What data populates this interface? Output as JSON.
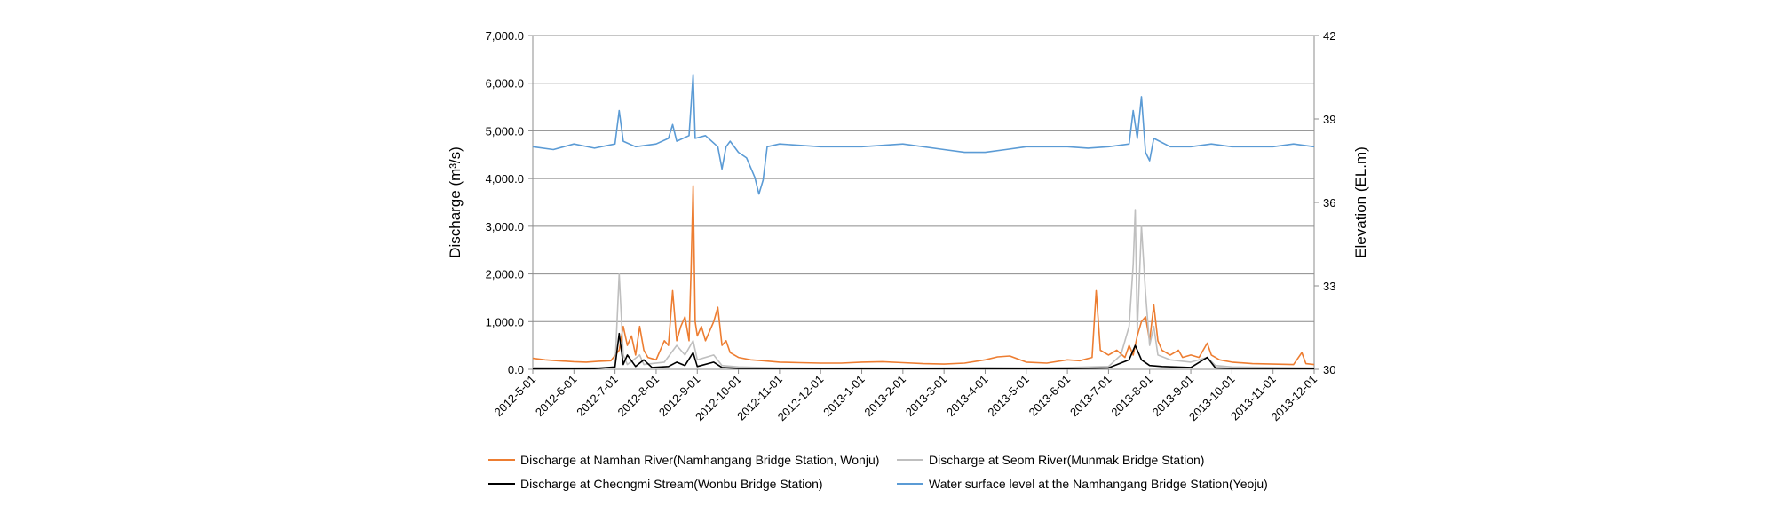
{
  "chart_data": {
    "type": "line",
    "x_tick_labels": [
      "2012-5-01",
      "2012-6-01",
      "2012-7-01",
      "2012-8-01",
      "2012-9-01",
      "2012-10-01",
      "2012-11-01",
      "2012-12-01",
      "2013-1-01",
      "2013-2-01",
      "2013-3-01",
      "2013-4-01",
      "2013-5-01",
      "2013-6-01",
      "2013-7-01",
      "2013-8-01",
      "2013-9-01",
      "2013-10-01",
      "2013-11-01",
      "2013-12-01"
    ],
    "y_left": {
      "label": "Discharge (m³/s)",
      "range": [
        0,
        7000
      ],
      "tick_labels": [
        "0.0",
        "1,000.0",
        "2,000.0",
        "3,000.0",
        "4,000.0",
        "5,000.0",
        "6,000.0",
        "7,000.0"
      ]
    },
    "y_right": {
      "label": "Elevation (EL.m)",
      "range": [
        30,
        42
      ],
      "tick_labels": [
        "30",
        "33",
        "36",
        "39",
        "42"
      ]
    },
    "grid": true,
    "series": [
      {
        "name": "Discharge at Namhan River(Namhangang Bridge Station, Wonju)",
        "axis": "left",
        "color": "#ed7d31",
        "points": [
          [
            0,
            230
          ],
          [
            0.3,
            200
          ],
          [
            0.6,
            180
          ],
          [
            1,
            160
          ],
          [
            1.3,
            150
          ],
          [
            1.6,
            170
          ],
          [
            1.9,
            180
          ],
          [
            2.1,
            400
          ],
          [
            2.2,
            900
          ],
          [
            2.3,
            500
          ],
          [
            2.4,
            700
          ],
          [
            2.5,
            300
          ],
          [
            2.6,
            900
          ],
          [
            2.7,
            400
          ],
          [
            2.8,
            250
          ],
          [
            3.0,
            200
          ],
          [
            3.2,
            600
          ],
          [
            3.3,
            500
          ],
          [
            3.4,
            1650
          ],
          [
            3.5,
            600
          ],
          [
            3.6,
            900
          ],
          [
            3.7,
            1100
          ],
          [
            3.8,
            600
          ],
          [
            3.85,
            2100
          ],
          [
            3.9,
            3850
          ],
          [
            3.95,
            1000
          ],
          [
            4.0,
            700
          ],
          [
            4.1,
            900
          ],
          [
            4.2,
            600
          ],
          [
            4.4,
            1000
          ],
          [
            4.5,
            1300
          ],
          [
            4.6,
            500
          ],
          [
            4.7,
            600
          ],
          [
            4.8,
            350
          ],
          [
            5.0,
            250
          ],
          [
            5.3,
            200
          ],
          [
            5.6,
            180
          ],
          [
            6.0,
            150
          ],
          [
            6.5,
            140
          ],
          [
            7,
            130
          ],
          [
            7.5,
            130
          ],
          [
            8,
            150
          ],
          [
            8.5,
            160
          ],
          [
            9,
            140
          ],
          [
            9.5,
            120
          ],
          [
            10,
            110
          ],
          [
            10.5,
            130
          ],
          [
            11,
            200
          ],
          [
            11.3,
            260
          ],
          [
            11.6,
            280
          ],
          [
            12,
            150
          ],
          [
            12.5,
            130
          ],
          [
            13,
            200
          ],
          [
            13.3,
            180
          ],
          [
            13.6,
            250
          ],
          [
            13.7,
            1650
          ],
          [
            13.8,
            400
          ],
          [
            14.0,
            300
          ],
          [
            14.2,
            400
          ],
          [
            14.4,
            250
          ],
          [
            14.5,
            500
          ],
          [
            14.6,
            300
          ],
          [
            14.7,
            700
          ],
          [
            14.8,
            1000
          ],
          [
            14.9,
            1100
          ],
          [
            15.0,
            600
          ],
          [
            15.1,
            1350
          ],
          [
            15.2,
            600
          ],
          [
            15.3,
            400
          ],
          [
            15.5,
            300
          ],
          [
            15.7,
            400
          ],
          [
            15.8,
            250
          ],
          [
            16.0,
            300
          ],
          [
            16.2,
            250
          ],
          [
            16.4,
            550
          ],
          [
            16.5,
            300
          ],
          [
            16.7,
            200
          ],
          [
            17,
            150
          ],
          [
            17.5,
            120
          ],
          [
            18,
            110
          ],
          [
            18.5,
            100
          ],
          [
            18.7,
            350
          ],
          [
            18.8,
            120
          ],
          [
            19,
            100
          ]
        ]
      },
      {
        "name": "Discharge at Seom River(Munmak Bridge Station)",
        "axis": "left",
        "color": "#bfbfbf",
        "points": [
          [
            0,
            40
          ],
          [
            1,
            30
          ],
          [
            2,
            40
          ],
          [
            2.1,
            2000
          ],
          [
            2.2,
            300
          ],
          [
            2.3,
            100
          ],
          [
            2.6,
            300
          ],
          [
            2.7,
            100
          ],
          [
            3.2,
            150
          ],
          [
            3.5,
            500
          ],
          [
            3.7,
            300
          ],
          [
            3.9,
            600
          ],
          [
            4.0,
            200
          ],
          [
            4.4,
            300
          ],
          [
            4.6,
            80
          ],
          [
            5,
            50
          ],
          [
            6,
            30
          ],
          [
            7,
            25
          ],
          [
            8,
            30
          ],
          [
            9,
            25
          ],
          [
            10,
            30
          ],
          [
            11,
            40
          ],
          [
            12,
            30
          ],
          [
            13,
            40
          ],
          [
            14,
            60
          ],
          [
            14.3,
            300
          ],
          [
            14.5,
            900
          ],
          [
            14.6,
            2200
          ],
          [
            14.65,
            3350
          ],
          [
            14.7,
            800
          ],
          [
            14.8,
            3000
          ],
          [
            14.9,
            1600
          ],
          [
            15.0,
            500
          ],
          [
            15.1,
            900
          ],
          [
            15.2,
            300
          ],
          [
            15.5,
            200
          ],
          [
            16,
            150
          ],
          [
            16.4,
            250
          ],
          [
            16.6,
            80
          ],
          [
            17,
            50
          ],
          [
            18,
            40
          ],
          [
            19,
            30
          ]
        ]
      },
      {
        "name": "Discharge at Cheongmi Stream(Wonbu Bridge Station)",
        "axis": "left",
        "color": "#000000",
        "points": [
          [
            0,
            10
          ],
          [
            1.5,
            15
          ],
          [
            2.0,
            50
          ],
          [
            2.1,
            750
          ],
          [
            2.2,
            100
          ],
          [
            2.3,
            300
          ],
          [
            2.5,
            60
          ],
          [
            2.7,
            200
          ],
          [
            2.9,
            40
          ],
          [
            3.3,
            60
          ],
          [
            3.5,
            150
          ],
          [
            3.7,
            80
          ],
          [
            3.9,
            350
          ],
          [
            4.0,
            60
          ],
          [
            4.4,
            150
          ],
          [
            4.6,
            40
          ],
          [
            5,
            20
          ],
          [
            7,
            15
          ],
          [
            9,
            15
          ],
          [
            11,
            15
          ],
          [
            13,
            15
          ],
          [
            14,
            30
          ],
          [
            14.5,
            200
          ],
          [
            14.65,
            500
          ],
          [
            14.8,
            200
          ],
          [
            15.0,
            80
          ],
          [
            15.3,
            60
          ],
          [
            16,
            40
          ],
          [
            16.4,
            250
          ],
          [
            16.6,
            30
          ],
          [
            17,
            20
          ],
          [
            19,
            15
          ]
        ]
      },
      {
        "name": "Water surface level at the Namhangang Bridge Station(Yeoju)",
        "axis": "right",
        "color": "#5b9bd5",
        "points": [
          [
            0,
            38
          ],
          [
            0.5,
            37.9
          ],
          [
            1,
            38.1
          ],
          [
            1.5,
            37.95
          ],
          [
            2.0,
            38.1
          ],
          [
            2.1,
            39.3
          ],
          [
            2.2,
            38.2
          ],
          [
            2.5,
            38.0
          ],
          [
            3.0,
            38.1
          ],
          [
            3.3,
            38.3
          ],
          [
            3.4,
            38.8
          ],
          [
            3.5,
            38.2
          ],
          [
            3.8,
            38.4
          ],
          [
            3.9,
            40.6
          ],
          [
            3.95,
            38.3
          ],
          [
            4.2,
            38.4
          ],
          [
            4.5,
            38.0
          ],
          [
            4.6,
            37.2
          ],
          [
            4.7,
            38.0
          ],
          [
            4.8,
            38.2
          ],
          [
            5.0,
            37.8
          ],
          [
            5.2,
            37.6
          ],
          [
            5.4,
            36.9
          ],
          [
            5.5,
            36.3
          ],
          [
            5.6,
            36.8
          ],
          [
            5.7,
            38.0
          ],
          [
            6.0,
            38.1
          ],
          [
            7,
            38.0
          ],
          [
            8,
            38.0
          ],
          [
            9,
            38.1
          ],
          [
            10,
            37.9
          ],
          [
            10.5,
            37.8
          ],
          [
            11,
            37.8
          ],
          [
            11.5,
            37.9
          ],
          [
            12,
            38.0
          ],
          [
            13,
            38.0
          ],
          [
            13.5,
            37.95
          ],
          [
            14.0,
            38.0
          ],
          [
            14.5,
            38.1
          ],
          [
            14.6,
            39.3
          ],
          [
            14.7,
            38.3
          ],
          [
            14.8,
            39.8
          ],
          [
            14.9,
            37.8
          ],
          [
            15.0,
            37.5
          ],
          [
            15.1,
            38.3
          ],
          [
            15.5,
            38.0
          ],
          [
            16,
            38.0
          ],
          [
            16.5,
            38.1
          ],
          [
            17,
            38.0
          ],
          [
            18,
            38.0
          ],
          [
            18.5,
            38.1
          ],
          [
            19,
            38.0
          ]
        ]
      }
    ],
    "legend_position": "bottom"
  }
}
